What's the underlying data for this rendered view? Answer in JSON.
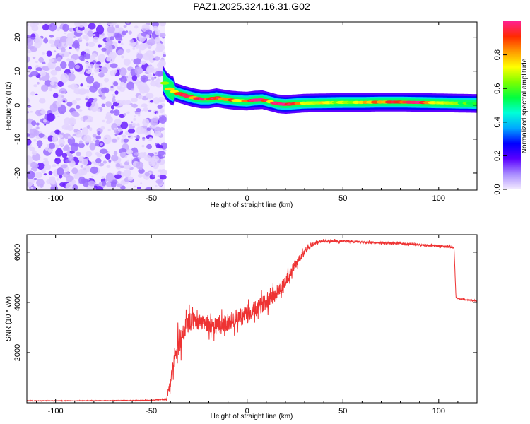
{
  "title": "PAZ1.2025.324.16.31.G02",
  "chart_data": [
    {
      "type": "heatmap",
      "name": "spectrogram",
      "xlabel": "Height of straight line (km)",
      "ylabel": "Frequency (Hz)",
      "xlim": [
        -115,
        120
      ],
      "ylim": [
        -25,
        24.5
      ],
      "xticks": [
        -100,
        -50,
        0,
        50,
        100
      ],
      "yticks": [
        -20,
        -10,
        0,
        10,
        20
      ],
      "xtick_labels": [
        "-100",
        "-50",
        "0",
        "50",
        "100"
      ],
      "ytick_labels": [
        "-20",
        "-10",
        "0",
        "10",
        "20"
      ],
      "noise_region_x": [
        -115,
        -43
      ],
      "ridge": {
        "x": [
          -44,
          -42,
          -40,
          -36,
          -32,
          -28,
          -24,
          -20,
          -16,
          -12,
          -8,
          -4,
          0,
          4,
          8,
          12,
          16,
          20,
          25,
          30,
          40,
          50,
          60,
          70,
          80,
          90,
          100,
          110,
          120
        ],
        "freq": [
          7.5,
          5.5,
          4.5,
          3.5,
          2.8,
          2.2,
          1.8,
          1.8,
          2.2,
          1.8,
          1.5,
          1.3,
          1.2,
          1.5,
          1.6,
          1.0,
          0.4,
          0.2,
          0.4,
          0.6,
          0.7,
          0.8,
          0.8,
          0.9,
          0.9,
          0.8,
          0.7,
          0.6,
          0.5
        ],
        "amplitude": [
          0.5,
          0.55,
          0.6,
          0.8,
          0.9,
          0.7,
          0.85,
          0.8,
          0.9,
          0.65,
          0.8,
          0.6,
          0.75,
          0.95,
          0.9,
          0.7,
          0.95,
          0.9,
          0.75,
          0.6,
          0.6,
          0.55,
          0.65,
          0.75,
          0.8,
          0.85,
          0.6,
          0.5,
          0.5
        ]
      }
    },
    {
      "type": "colorbar",
      "name": "amplitude-colorbar",
      "label": "Normalized spectral amplitude",
      "range": [
        0,
        1
      ],
      "ticks": [
        0.0,
        0.2,
        0.4,
        0.6,
        0.8
      ],
      "tick_labels": [
        "0.0",
        "0.2",
        "0.4",
        "0.6",
        "0.8"
      ],
      "colors": [
        "#f4ecff",
        "#a98cff",
        "#5a00ff",
        "#0000ff",
        "#00a8ff",
        "#00ffd8",
        "#00ff40",
        "#7cff00",
        "#ffff00",
        "#ff9a00",
        "#ff2a00",
        "#ff2090"
      ]
    },
    {
      "type": "line",
      "name": "snr-line",
      "xlabel": "Height of straight line (km)",
      "ylabel": "SNR (10 * v/v)",
      "xlim": [
        -115,
        120
      ],
      "ylim": [
        0,
        6700
      ],
      "xticks": [
        -100,
        -50,
        0,
        50,
        100
      ],
      "yticks": [
        2000,
        4000,
        6000
      ],
      "xtick_labels": [
        "-100",
        "-50",
        "0",
        "50",
        "100"
      ],
      "ytick_labels": [
        "2000",
        "4000",
        "6000"
      ],
      "color": "#ee3333",
      "x": [
        -115,
        -90,
        -70,
        -50,
        -42,
        -40,
        -38,
        -36,
        -34,
        -32,
        -30,
        -28,
        -25,
        -22,
        -20,
        -15,
        -10,
        -5,
        0,
        5,
        10,
        15,
        20,
        25,
        30,
        35,
        40,
        50,
        60,
        70,
        80,
        90,
        100,
        108,
        109,
        110,
        115,
        120
      ],
      "y": [
        80,
        80,
        90,
        100,
        150,
        700,
        1700,
        2300,
        2700,
        3000,
        3200,
        3250,
        3200,
        3150,
        3150,
        3050,
        3200,
        3400,
        3500,
        3750,
        4050,
        4350,
        4800,
        5500,
        6050,
        6350,
        6450,
        6450,
        6400,
        6380,
        6350,
        6300,
        6250,
        6200,
        4200,
        4150,
        4100,
        4050
      ],
      "noise": [
        15,
        15,
        15,
        15,
        40,
        500,
        650,
        700,
        700,
        600,
        550,
        500,
        450,
        450,
        500,
        500,
        500,
        500,
        500,
        480,
        450,
        420,
        380,
        300,
        180,
        100,
        80,
        60,
        60,
        60,
        60,
        60,
        60,
        60,
        40,
        30,
        30,
        30
      ]
    }
  ]
}
